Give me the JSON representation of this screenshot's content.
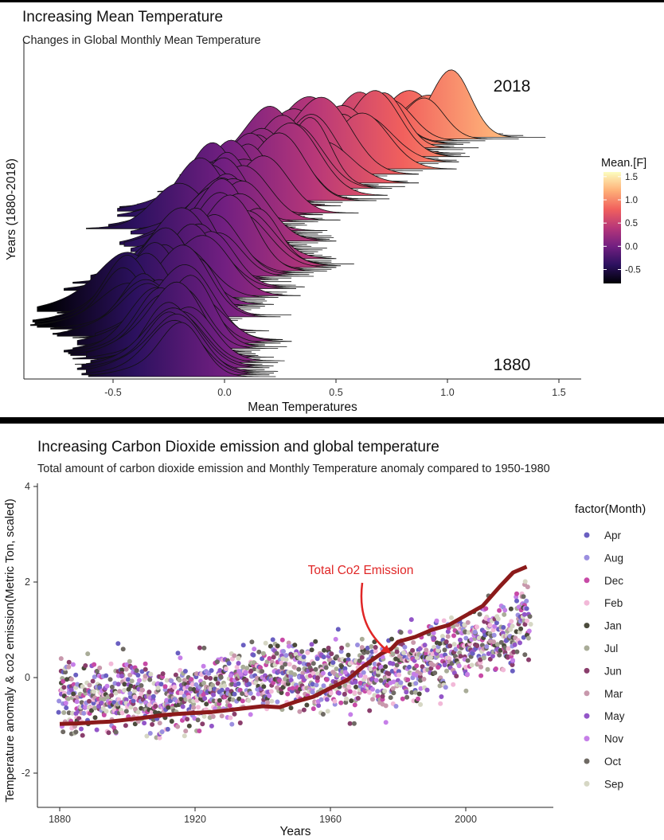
{
  "chart_data": [
    {
      "type": "ridgeline",
      "title": "Increasing Mean Temperature",
      "subtitle": "Changes in Global Monthly Mean Temperature",
      "xlabel": "Mean Temperatures",
      "ylabel": "Years (1880-2018)",
      "xlim": [
        -0.9,
        1.6
      ],
      "xticks": [
        -0.5,
        0.0,
        0.5,
        1.0,
        1.5
      ],
      "xtick_labels": [
        "-0.5",
        "0.0",
        "0.5",
        "1.0",
        "1.5"
      ],
      "annotations": [
        "2018",
        "1880"
      ],
      "years": [
        1880,
        2018
      ],
      "ridges_mean": [
        -0.19,
        -0.22,
        -0.2,
        -0.18,
        -0.24,
        -0.22,
        -0.2,
        -0.25,
        -0.18,
        -0.15,
        -0.26,
        -0.2,
        -0.27,
        -0.28,
        -0.3,
        -0.26,
        -0.18,
        -0.14,
        -0.24,
        -0.17,
        -0.12,
        -0.16,
        -0.26,
        -0.33,
        -0.35,
        -0.28,
        -0.22,
        -0.36,
        -0.42,
        -0.45,
        -0.43,
        -0.44,
        -0.36,
        -0.34,
        -0.17,
        -0.12,
        -0.33,
        -0.42,
        -0.3,
        -0.26,
        -0.24,
        -0.2,
        -0.25,
        -0.23,
        -0.24,
        -0.18,
        -0.08,
        -0.16,
        -0.14,
        -0.3,
        -0.1,
        -0.06,
        -0.1,
        -0.26,
        -0.12,
        -0.18,
        -0.12,
        -0.02,
        -0.04,
        -0.02,
        0.04,
        0.06,
        0.08,
        0.1,
        0.16,
        0.06,
        0.06,
        0.08,
        0.06,
        0.02,
        -0.02,
        0.0,
        0.02,
        0.04,
        -0.03,
        -0.05,
        0.0,
        0.08,
        0.05,
        0.07,
        0.06,
        0.0,
        0.02,
        0.04,
        -0.2,
        -0.1,
        -0.05,
        -0.06,
        0.0,
        0.1,
        0.02,
        -0.06,
        0.02,
        0.18,
        -0.06,
        0.0,
        -0.05,
        0.1,
        0.03,
        0.11,
        0.26,
        0.32,
        0.13,
        0.31,
        0.16,
        0.12,
        0.18,
        0.33,
        0.39,
        0.27,
        0.45,
        0.4,
        0.22,
        0.23,
        0.31,
        0.45,
        0.33,
        0.47,
        0.62,
        0.4,
        0.42,
        0.54,
        0.63,
        0.62,
        0.54,
        0.68,
        0.64,
        0.66,
        0.54,
        0.65,
        0.72,
        0.61,
        0.65,
        0.68,
        0.75,
        0.9,
        1.02,
        0.92,
        0.83
      ],
      "colorbar": {
        "title": "Mean.[F]",
        "range": [
          -0.8,
          1.6
        ],
        "ticks": [
          -0.5,
          0.0,
          0.5,
          1.0,
          1.5
        ],
        "tick_labels": [
          "-0.5",
          "0.0",
          "0.5",
          "1.0",
          "1.5"
        ],
        "palette": [
          "#000004",
          "#2c115f",
          "#721f81",
          "#b73779",
          "#f1605d",
          "#feb078",
          "#fcfdbf"
        ]
      }
    },
    {
      "type": "scatter",
      "title": "Increasing Carbon Dioxide emission and global temperature",
      "subtitle": "Total amount of carbon dioxide emission and Monthly Temperature anomaly compared to 1950-1980",
      "xlabel": "Years",
      "ylabel": "Temperature anomaly & co2 emission(Metric Ton, scaled)",
      "xlim": [
        1875,
        2022
      ],
      "ylim": [
        -2.8,
        4.1
      ],
      "xticks": [
        1880,
        1920,
        1960,
        2000
      ],
      "yticks": [
        -2,
        0,
        2,
        4
      ],
      "legend": {
        "title": "factor(Month)",
        "placement": "right",
        "items": [
          {
            "name": "Apr",
            "color": "#6a5fc1"
          },
          {
            "name": "Aug",
            "color": "#9b8fe0"
          },
          {
            "name": "Dec",
            "color": "#c74aa6"
          },
          {
            "name": "Feb",
            "color": "#f2b9d8"
          },
          {
            "name": "Jan",
            "color": "#4b4b3c"
          },
          {
            "name": "Jul",
            "color": "#a9ac98"
          },
          {
            "name": "Jun",
            "color": "#8a3e6c"
          },
          {
            "name": "Mar",
            "color": "#c898ac"
          },
          {
            "name": "May",
            "color": "#9356c8"
          },
          {
            "name": "Nov",
            "color": "#c67fe8"
          },
          {
            "name": "Oct",
            "color": "#6f6a64"
          },
          {
            "name": "Sep",
            "color": "#d6d7c4"
          }
        ]
      },
      "line": {
        "name": "Total Co2 Emission",
        "color": "#8b1a1a",
        "x": [
          1880,
          1885,
          1890,
          1895,
          1900,
          1905,
          1910,
          1915,
          1920,
          1925,
          1930,
          1935,
          1940,
          1945,
          1950,
          1955,
          1960,
          1965,
          1970,
          1975,
          1978,
          1980,
          1985,
          1990,
          1995,
          2000,
          2005,
          2010,
          2014,
          2018
        ],
        "y": [
          -0.97,
          -0.96,
          -0.94,
          -0.92,
          -0.88,
          -0.84,
          -0.79,
          -0.76,
          -0.74,
          -0.72,
          -0.68,
          -0.64,
          -0.6,
          -0.62,
          -0.5,
          -0.4,
          -0.22,
          -0.05,
          0.25,
          0.5,
          0.6,
          0.75,
          0.85,
          1.0,
          1.1,
          1.3,
          1.5,
          1.9,
          2.2,
          2.32
        ]
      },
      "annotation": {
        "text": "Total Co2 Emission",
        "color": "#e02626",
        "x": 1976,
        "y": 0.72
      },
      "points_trend": [
        -0.4,
        -0.3,
        -0.35,
        -0.4,
        -0.5,
        -0.55,
        -0.45,
        -0.35,
        -0.3,
        -0.25,
        -0.35,
        -0.4,
        -0.45,
        -0.5,
        -0.55,
        -0.6,
        -0.5,
        -0.3,
        -0.2,
        -0.25,
        -0.2,
        -0.3,
        -0.35,
        -0.45,
        -0.5,
        -0.45,
        -0.35,
        -0.5,
        -0.55,
        -0.6,
        -0.55,
        -0.6,
        -0.5,
        -0.45,
        -0.3,
        -0.25,
        -0.45,
        -0.5,
        -0.4,
        -0.35,
        -0.3,
        -0.25,
        -0.3,
        -0.25,
        -0.3,
        -0.2,
        -0.1,
        -0.15,
        -0.15,
        -0.3,
        -0.1,
        -0.05,
        -0.1,
        -0.25,
        -0.1,
        -0.15,
        -0.1,
        0.0,
        0.0,
        0.0,
        0.05,
        0.1,
        0.15,
        0.2,
        0.25,
        0.15,
        0.1,
        0.15,
        0.1,
        0.05,
        0.0,
        0.05,
        0.05,
        0.1,
        0.0,
        -0.05,
        0.0,
        0.1,
        0.05,
        0.1,
        0.05,
        0.0,
        0.05,
        0.1,
        -0.15,
        -0.05,
        0.0,
        0.0,
        0.05,
        0.15,
        0.05,
        -0.05,
        0.05,
        0.2,
        -0.05,
        0.05,
        0.0,
        0.15,
        0.05,
        0.15,
        0.3,
        0.35,
        0.15,
        0.35,
        0.2,
        0.15,
        0.2,
        0.4,
        0.45,
        0.3,
        0.5,
        0.45,
        0.3,
        0.3,
        0.4,
        0.55,
        0.4,
        0.6,
        0.75,
        0.5,
        0.55,
        0.65,
        0.8,
        0.75,
        0.65,
        0.85,
        0.8,
        0.85,
        0.7,
        0.8,
        0.95,
        0.8,
        0.85,
        0.9,
        1.0,
        1.2,
        1.4,
        1.3,
        1.2
      ],
      "points_year_start": 1880,
      "points_spread": 0.55
    }
  ]
}
